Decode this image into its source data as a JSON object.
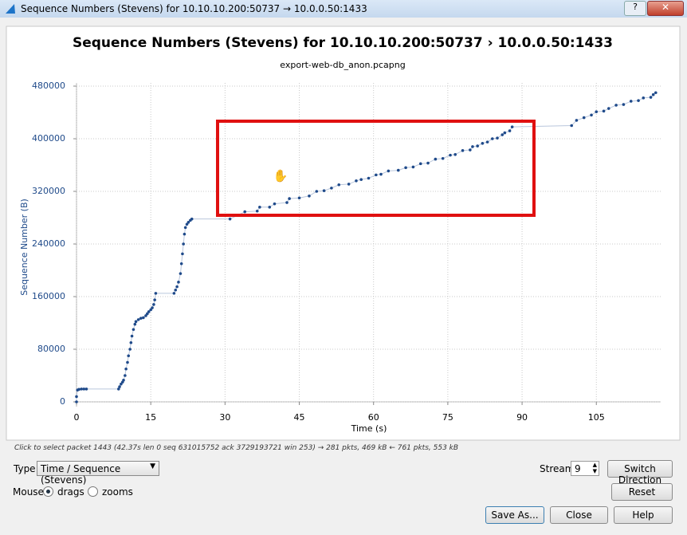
{
  "window_title": "Sequence Numbers (Stevens) for 10.10.10.200:50737 → 10.0.0.50:1433",
  "chart_data": {
    "type": "scatter",
    "title": "Sequence Numbers (Stevens) for 10.10.10.200:50737   › 10.0.0.50:1433",
    "subtitle": "export-web-db_anon.pcapng",
    "x_label": "Time (s)",
    "y_label": "Sequence Number (B)",
    "color": "#1f4a8a",
    "line_color": "#b9c6dc",
    "grid": true,
    "xlim": [
      0,
      118
    ],
    "ylim": [
      0,
      480000
    ],
    "xticks": [
      0,
      15,
      30,
      45,
      60,
      75,
      90,
      105
    ],
    "yticks": [
      0,
      80000,
      160000,
      240000,
      320000,
      400000,
      480000
    ],
    "x": [
      0,
      0,
      0.2,
      0.5,
      1,
      1.5,
      2,
      8.5,
      8.7,
      9,
      9.3,
      9.5,
      9.8,
      10,
      10.3,
      10.5,
      10.8,
      11,
      11.2,
      11.5,
      11.8,
      12,
      12.5,
      13,
      13.5,
      14,
      14.3,
      14.6,
      15,
      15.3,
      15.6,
      15.8,
      16,
      19.7,
      20,
      20.3,
      20.6,
      21,
      21.2,
      21.4,
      21.6,
      21.8,
      22,
      22.3,
      22.6,
      23,
      23.3,
      31,
      34,
      36.5,
      37,
      39,
      40,
      42.5,
      43,
      45,
      47,
      48.5,
      50,
      51.5,
      53,
      55,
      56.5,
      57.5,
      59,
      60.5,
      61.5,
      63,
      65,
      66.5,
      68,
      69.5,
      71,
      72.5,
      74,
      75.5,
      76.5,
      78,
      79.5,
      80,
      81,
      82,
      83,
      84,
      85,
      86,
      86.5,
      87.5,
      88,
      100,
      101,
      102.5,
      104,
      105,
      106.5,
      107.5,
      109,
      110.5,
      112,
      113.5,
      114.5,
      116,
      116.5,
      117
    ],
    "values": [
      0,
      8000,
      18000,
      19000,
      19500,
      19500,
      19500,
      19500,
      23000,
      27000,
      30000,
      33000,
      40000,
      50000,
      60000,
      70000,
      80000,
      90000,
      100000,
      110000,
      118000,
      122000,
      125000,
      127000,
      128000,
      131000,
      134000,
      137000,
      140000,
      143000,
      148000,
      155000,
      165000,
      165000,
      170000,
      175000,
      182000,
      195000,
      210000,
      225000,
      240000,
      255000,
      265000,
      270000,
      273000,
      276000,
      278000,
      278000,
      289000,
      290000,
      296000,
      296000,
      301000,
      303000,
      309000,
      310000,
      313000,
      320000,
      321000,
      325000,
      330000,
      331000,
      336000,
      338000,
      340000,
      345000,
      346000,
      351000,
      352000,
      356000,
      357000,
      362000,
      363000,
      369000,
      370000,
      375000,
      376000,
      382000,
      383000,
      388000,
      389000,
      393000,
      395000,
      400000,
      401000,
      406000,
      409000,
      412000,
      418000,
      420000,
      428000,
      432000,
      436000,
      441000,
      442000,
      446000,
      451000,
      452000,
      457000,
      458000,
      462000,
      463000,
      467000,
      470000
    ]
  },
  "status": "Click to select packet 1443 (42.37s len 0 seq 631015752 ack 3729193721 win 253) → 281 pkts, 469 kB ← 761 pkts, 553 kB",
  "controls": {
    "type_label": "Type",
    "type_value": "Time / Sequence (Stevens)",
    "stream_label": "Stream",
    "stream_value": "9",
    "switch_direction": "Switch Direction",
    "mouse_label": "Mouse",
    "drags": "drags",
    "zooms": "zooms",
    "reset": "Reset",
    "save_as": "Save As...",
    "close": "Close",
    "help": "Help"
  }
}
